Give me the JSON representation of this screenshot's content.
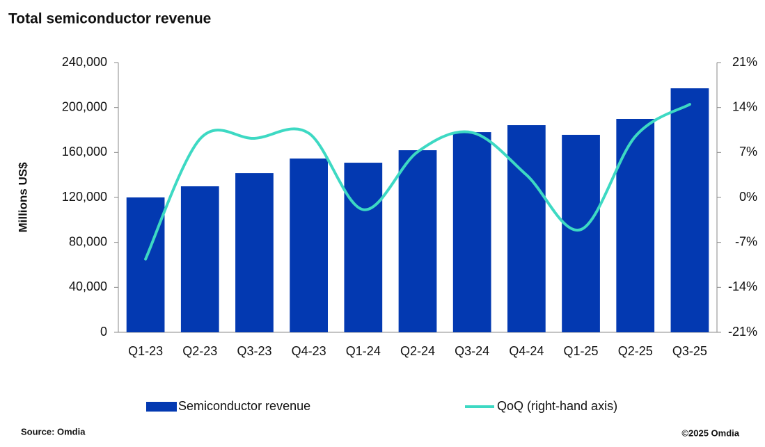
{
  "chart_data": {
    "type": "bar_line",
    "title": "Total semiconductor revenue",
    "y_label": "Millions US$",
    "source": "Source: Omdia",
    "copyright": "©2025 Omdia",
    "categories": [
      "Q1-23",
      "Q2-23",
      "Q3-23",
      "Q4-23",
      "Q1-24",
      "Q2-24",
      "Q3-24",
      "Q4-24",
      "Q1-25",
      "Q2-25",
      "Q3-25"
    ],
    "series": [
      {
        "name": "Semiconductor revenue",
        "color": "#0339b1",
        "type": "bar",
        "values": [
          120000,
          129900,
          141600,
          154600,
          150900,
          162000,
          178100,
          184300,
          175700,
          189900,
          217100
        ]
      },
      {
        "name": "QoQ (right-hand axis)",
        "color": "#3dd9c3",
        "type": "line",
        "axis": "y2",
        "values": [
          -9.6,
          9.1,
          9.2,
          10.0,
          -1.9,
          7.1,
          10.1,
          3.5,
          -5.0,
          9.5,
          14.5
        ]
      }
    ],
    "ylim": [
      0,
      240000
    ],
    "yticks": [
      0,
      {
        "value": 40000,
        "label": "40,000"
      },
      {
        "value": 80000,
        "label": "80,000"
      },
      {
        "value": 120000,
        "label": "120,000"
      },
      {
        "value": 160000,
        "label": "160,000"
      },
      {
        "value": 200000,
        "label": "200,000"
      },
      {
        "value": 240000,
        "label": "240,000"
      }
    ],
    "y2lim": [
      -21,
      21
    ],
    "y2ticks": [
      {
        "value": -21,
        "label": "-21%"
      },
      {
        "value": -14,
        "label": "-14%"
      },
      {
        "value": -7,
        "label": "-7%"
      },
      {
        "value": 0,
        "label": "0%"
      },
      {
        "value": 7,
        "label": "7%"
      },
      {
        "value": 14,
        "label": "14%"
      },
      {
        "value": 21,
        "label": "21%"
      }
    ],
    "grid": false,
    "legend": "bottom"
  }
}
